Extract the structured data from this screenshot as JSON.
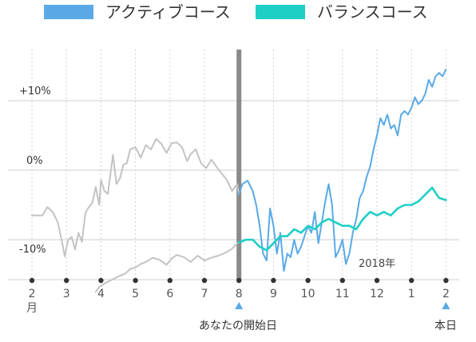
{
  "colors": {
    "active": "#5aa9e6",
    "balanced": "#1ecfc6",
    "grey": "#c3c3c3",
    "grid": "#cfcfcf",
    "start_line": "#8a8a8a",
    "marker": "#5aa9e6"
  },
  "chart_data": {
    "type": "line",
    "legend": {
      "position": "top",
      "entries": [
        "アクティブコース",
        "バランスコース"
      ]
    },
    "ylim": [
      -18,
      18
    ],
    "y_ticks": [
      {
        "label": "+10%",
        "value": 10
      },
      {
        "label": "0%",
        "value": 0
      },
      {
        "label": "-10%",
        "value": -10
      }
    ],
    "x_ticks": [
      "2",
      "3",
      "4",
      "5",
      "6",
      "7",
      "8",
      "9",
      "10",
      "11",
      "12",
      "1",
      "2"
    ],
    "x_tick_sublabel": "月",
    "year_label": "2018年",
    "start_label": "あなたの開始日",
    "end_label": "本日",
    "start_index": 6,
    "grid": true,
    "series": [
      {
        "name": "アクティブコース",
        "role": "active_history",
        "x": [
          0,
          0.3,
          0.45,
          0.6,
          0.75,
          0.9,
          0.95,
          1.05,
          1.15,
          1.25,
          1.35,
          1.45,
          1.55,
          1.65,
          1.75,
          1.85,
          1.95,
          2.0,
          2.1,
          2.2,
          2.35,
          2.45,
          2.55,
          2.65,
          2.75,
          2.85,
          3.0,
          3.15,
          3.3,
          3.45,
          3.6,
          3.75,
          3.9,
          4.05,
          4.2,
          4.35,
          4.5,
          4.6,
          4.75,
          4.9,
          5.05,
          5.2,
          5.35,
          5.5,
          5.65,
          5.8,
          5.95,
          6.0
        ],
        "values": [
          -6.5,
          -6.5,
          -5.3,
          -6.0,
          -7.5,
          -11.0,
          -12.4,
          -10.0,
          -9.6,
          -11.4,
          -9.0,
          -10.3,
          -6.1,
          -5.3,
          -4.7,
          -2.4,
          -5.0,
          -1.4,
          -3.0,
          -3.4,
          2.2,
          -2.0,
          -1.2,
          0.8,
          1.0,
          3.0,
          3.3,
          1.8,
          3.6,
          3.0,
          4.5,
          3.8,
          2.5,
          3.9,
          4.0,
          3.3,
          1.3,
          2.3,
          3.0,
          1.0,
          0.3,
          1.5,
          0.5,
          -0.5,
          -1.4,
          -3.0,
          -2.0,
          -3.5
        ]
      },
      {
        "name": "バランスコース",
        "role": "balanced_history",
        "x": [
          1.85,
          1.95,
          2.1,
          2.3,
          2.5,
          2.7,
          2.85,
          3.0,
          3.15,
          3.3,
          3.5,
          3.7,
          3.9,
          4.05,
          4.2,
          4.4,
          4.6,
          4.8,
          5.0,
          5.2,
          5.4,
          5.6,
          5.8,
          5.95,
          6.0
        ],
        "values": [
          -17.5,
          -16.8,
          -16.3,
          -15.8,
          -15.3,
          -14.9,
          -14.2,
          -14.0,
          -13.5,
          -13.2,
          -12.6,
          -12.9,
          -13.6,
          -12.7,
          -12.2,
          -12.5,
          -13.2,
          -12.3,
          -13.0,
          -12.6,
          -12.3,
          -11.9,
          -11.3,
          -10.5,
          -10.4
        ]
      },
      {
        "name": "アクティブコース",
        "role": "active",
        "x": [
          6.0,
          6.1,
          6.25,
          6.4,
          6.5,
          6.6,
          6.7,
          6.8,
          6.9,
          7.0,
          7.1,
          7.2,
          7.3,
          7.4,
          7.5,
          7.6,
          7.7,
          7.8,
          7.9,
          8.0,
          8.1,
          8.2,
          8.3,
          8.4,
          8.5,
          8.6,
          8.7,
          8.8,
          8.9,
          9.0,
          9.1,
          9.2,
          9.3,
          9.4,
          9.5,
          9.6,
          9.7,
          9.8,
          9.9,
          10.0,
          10.1,
          10.2,
          10.3,
          10.4,
          10.5,
          10.6,
          10.7,
          10.8,
          10.9,
          11.0,
          11.1,
          11.2,
          11.3,
          11.4,
          11.5,
          11.6,
          11.7,
          11.8,
          11.9,
          12.0
        ],
        "values": [
          -3.5,
          -2.0,
          -1.5,
          -3.0,
          -5.0,
          -8.0,
          -12.0,
          -13.0,
          -5.5,
          -8.0,
          -12.0,
          -9.0,
          -14.5,
          -12.0,
          -12.5,
          -10.0,
          -12.0,
          -11.0,
          -9.5,
          -8.0,
          -9.0,
          -6.0,
          -10.5,
          -7.5,
          -4.5,
          -2.0,
          -5.0,
          -12.5,
          -11.5,
          -10.0,
          -13.5,
          -12.0,
          -9.0,
          -7.0,
          -4.0,
          -3.0,
          -1.0,
          0.5,
          3.0,
          5.0,
          7.5,
          6.5,
          8.0,
          6.0,
          6.5,
          5.0,
          8.0,
          8.5,
          8.0,
          9.0,
          10.5,
          9.5,
          10.0,
          11.0,
          13.0,
          12.0,
          13.5,
          14.0,
          13.5,
          14.5
        ]
      },
      {
        "name": "バランスコース",
        "role": "balanced",
        "x": [
          6.0,
          6.2,
          6.4,
          6.6,
          6.8,
          7.0,
          7.2,
          7.4,
          7.6,
          7.8,
          8.0,
          8.2,
          8.4,
          8.6,
          8.8,
          9.0,
          9.2,
          9.4,
          9.6,
          9.8,
          10.0,
          10.2,
          10.4,
          10.6,
          10.8,
          11.0,
          11.2,
          11.4,
          11.6,
          11.8,
          12.0
        ],
        "values": [
          -10.4,
          -10.0,
          -10.0,
          -11.0,
          -11.5,
          -10.5,
          -9.5,
          -9.5,
          -8.5,
          -9.0,
          -8.0,
          -8.5,
          -7.5,
          -7.0,
          -7.5,
          -8.0,
          -8.0,
          -8.5,
          -7.0,
          -6.0,
          -6.5,
          -6.0,
          -6.5,
          -5.5,
          -5.0,
          -5.0,
          -4.5,
          -3.5,
          -2.5,
          -4.0,
          -4.3
        ]
      }
    ]
  }
}
